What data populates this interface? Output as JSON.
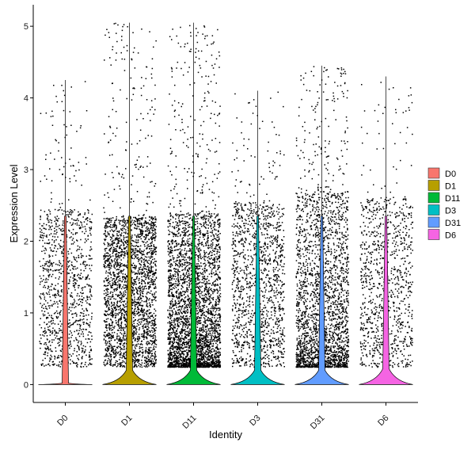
{
  "chart_data": {
    "type": "violin",
    "title": "",
    "xlabel": "Identity",
    "ylabel": "Expression Level",
    "ylim": [
      -0.25,
      5.3
    ],
    "yticks": [
      0,
      1,
      2,
      3,
      4,
      5
    ],
    "grid": false,
    "legend_position": "right",
    "categories": [
      "D0",
      "D1",
      "D11",
      "D3",
      "D31",
      "D6"
    ],
    "colors": [
      "#F8766D",
      "#B79F00",
      "#00BA38",
      "#00BFC4",
      "#619CFF",
      "#F564E3"
    ],
    "series": [
      {
        "name": "D0",
        "max": 4.25,
        "median": 0,
        "core_max": 2.45,
        "n_points": 1100
      },
      {
        "name": "D1",
        "max": 5.05,
        "median": 0,
        "core_max": 2.35,
        "n_points": 2600
      },
      {
        "name": "D11",
        "max": 5.05,
        "median": 0,
        "core_max": 2.4,
        "n_points": 3400
      },
      {
        "name": "D3",
        "max": 4.1,
        "median": 0,
        "core_max": 2.55,
        "n_points": 1300
      },
      {
        "name": "D31",
        "max": 4.45,
        "median": 0,
        "core_max": 2.7,
        "n_points": 2500
      },
      {
        "name": "D6",
        "max": 4.3,
        "median": 0,
        "core_max": 2.6,
        "n_points": 1000
      }
    ],
    "legend": {
      "entries": [
        "D0",
        "D1",
        "D11",
        "D3",
        "D31",
        "D6"
      ]
    }
  }
}
